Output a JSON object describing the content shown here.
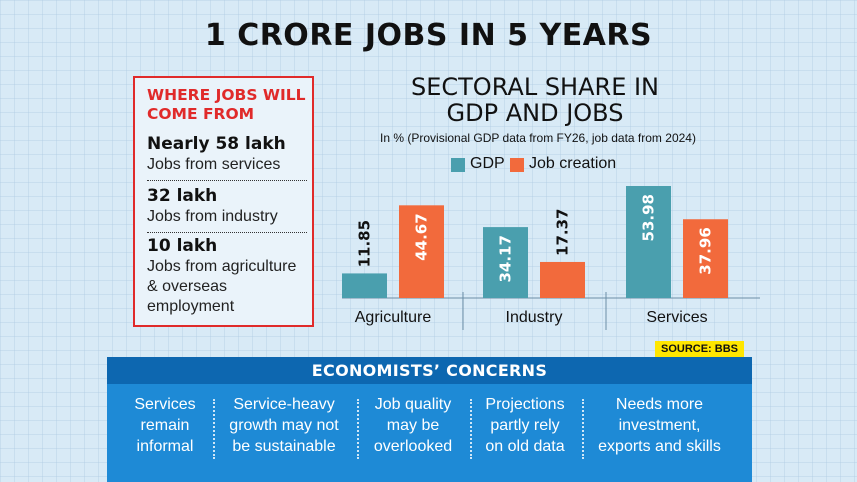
{
  "title": "1 CRORE JOBS IN 5 YEARS",
  "jobs_box": {
    "heading_line1": "WHERE JOBS WILL",
    "heading_line2": "COME FROM",
    "items": [
      {
        "title": "Nearly 58 lakh",
        "desc": [
          "Jobs from services"
        ]
      },
      {
        "title": "32 lakh",
        "desc": [
          "Jobs from industry"
        ]
      },
      {
        "title": "10 lakh",
        "desc": [
          "Jobs from agriculture",
          "& overseas",
          "employment"
        ]
      }
    ],
    "border_color": "#e02a2a"
  },
  "chart_data": {
    "type": "bar",
    "title_line1": "SECTORAL SHARE IN",
    "title_line2": "GDP AND JOBS",
    "subtitle": "In % (Provisional GDP data from FY26, job data from 2024)",
    "categories": [
      "Agriculture",
      "Industry",
      "Services"
    ],
    "series": [
      {
        "name": "GDP",
        "values": [
          11.85,
          34.17,
          53.98
        ],
        "color": "#4a9fae"
      },
      {
        "name": "Job creation",
        "values": [
          44.67,
          17.37,
          37.96
        ],
        "color": "#f26a3c"
      }
    ],
    "ylim": [
      0,
      60
    ],
    "grid": false,
    "legend_position": "top"
  },
  "source": {
    "prefix": "SOURCE: ",
    "name": "BBS"
  },
  "concerns": {
    "title": "ECONOMISTS’ CONCERNS",
    "items": [
      [
        "Services",
        "remain",
        "informal"
      ],
      [
        "Service-heavy",
        "growth may not",
        "be sustainable"
      ],
      [
        "Job quality",
        "may be",
        "overlooked"
      ],
      [
        "Projections",
        "partly rely",
        "on old data"
      ],
      [
        "Needs more",
        "investment,",
        "exports and skills"
      ]
    ]
  }
}
